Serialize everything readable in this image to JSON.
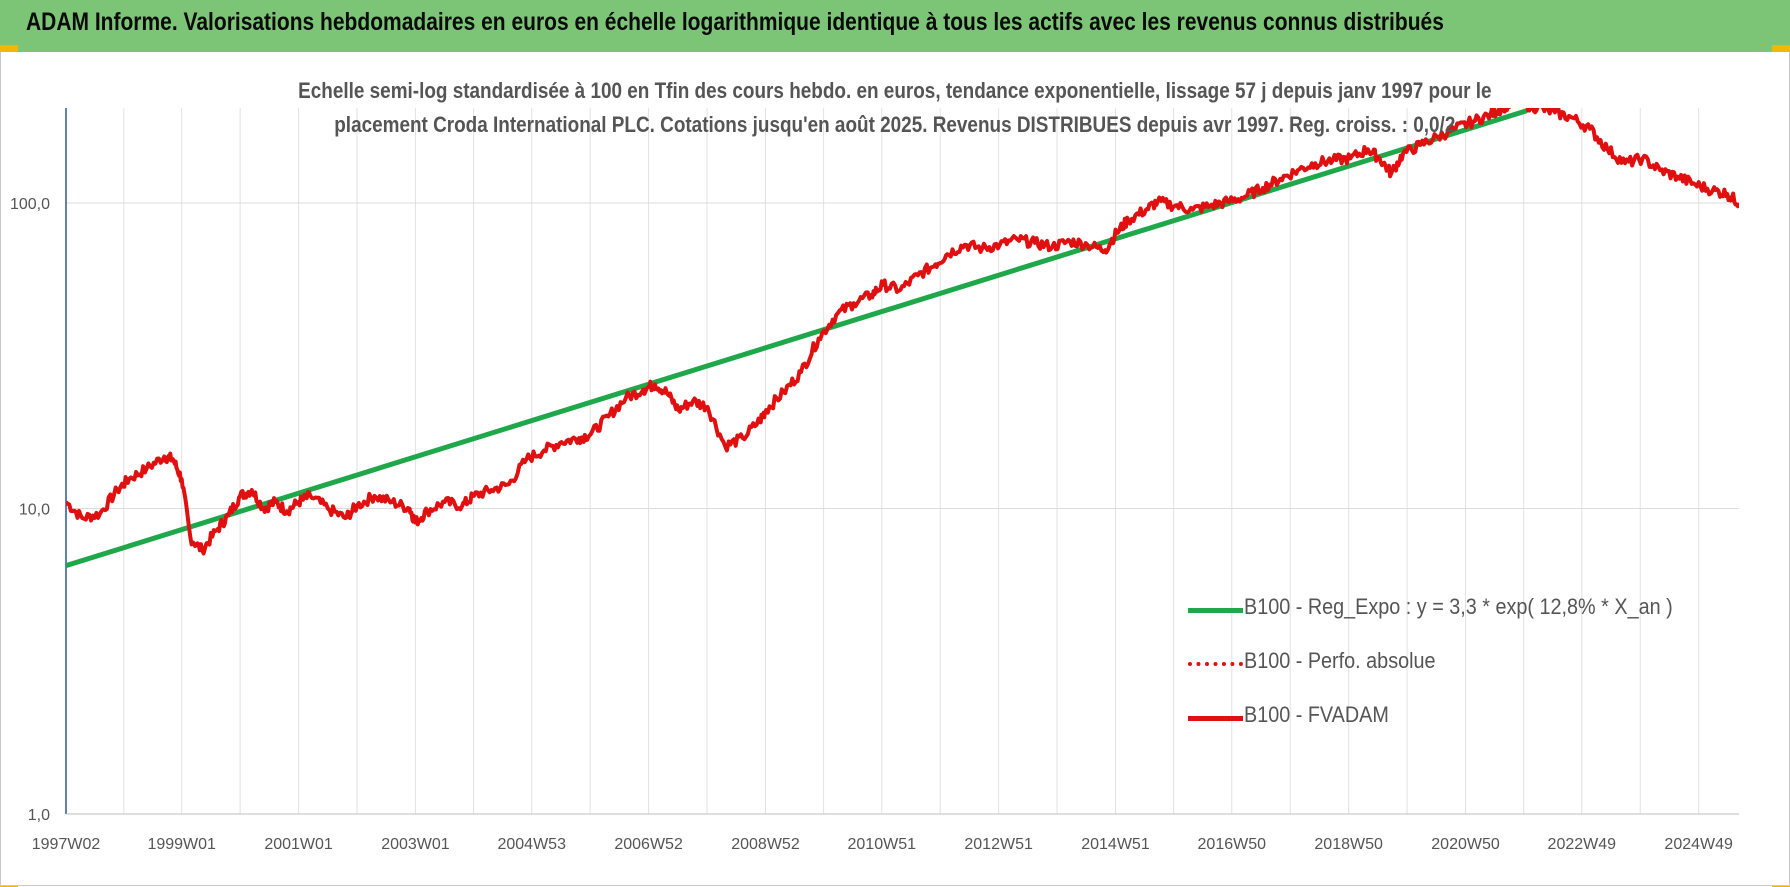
{
  "banner": {
    "title": "ADAM Informe. Valorisations hebdomadaires en euros en échelle logarithmique identique à tous les actifs avec les revenus connus distribués"
  },
  "chart_data": {
    "type": "line",
    "title_line1": "Echelle semi-log standardisée à 100 en Tfin des cours hebdo. en euros, tendance exponentielle, lissage 57 j depuis janv 1997 pour le",
    "title_line2": "placement Croda International PLC. Cotations jusqu'en août 2025. Revenus DISTRIBUES depuis avr 1997. Reg. croiss. : 0,0/2",
    "y_scale": "log",
    "ylim": [
      1,
      200
    ],
    "y_ticks": [
      "1,0",
      "10,0",
      "100,0"
    ],
    "y_tick_values": [
      1,
      10,
      100
    ],
    "xlim": [
      1997.02,
      2025.65
    ],
    "x_ticks": [
      "1997W02",
      "1999W01",
      "2001W01",
      "2003W01",
      "2004W53",
      "2006W52",
      "2008W52",
      "2010W51",
      "2012W51",
      "2014W51",
      "2016W50",
      "2018W50",
      "2020W50",
      "2022W49",
      "2024W49"
    ],
    "x_tick_values": [
      1997.02,
      1999.0,
      2001.0,
      2003.0,
      2004.99,
      2006.99,
      2008.99,
      2010.98,
      2012.98,
      2014.98,
      2016.97,
      2018.97,
      2020.97,
      2022.96,
      2024.96
    ],
    "grid": true,
    "legend_position": "bottom-right",
    "colors": {
      "trend": "#1ea84a",
      "perf": "#e01010",
      "fvadam": "#e01010"
    },
    "series": [
      {
        "name": "B100 - Reg_Expo : y = 3,3 * exp( 12,8% *  X_an )",
        "style": "solid",
        "x": [
          1997.02,
          2022.0
        ],
        "y": [
          6.5,
          200
        ]
      },
      {
        "name": "B100 - Perfo. absolue",
        "style": "dotted",
        "x": [],
        "y": []
      },
      {
        "name": "B100 - FVADAM",
        "style": "solid",
        "x": [
          1997.02,
          1997.3,
          1997.6,
          1997.9,
          1998.1,
          1998.4,
          1998.7,
          1998.85,
          1999.0,
          1999.15,
          1999.35,
          1999.6,
          1999.8,
          2000.0,
          2000.2,
          2000.4,
          2000.6,
          2000.8,
          2001.0,
          2001.2,
          2001.5,
          2001.8,
          2002.0,
          2002.3,
          2002.6,
          2002.9,
          2003.0,
          2003.2,
          2003.5,
          2003.8,
          2004.0,
          2004.3,
          2004.6,
          2004.9,
          2005.2,
          2005.5,
          2005.8,
          2006.0,
          2006.3,
          2006.6,
          2006.9,
          2007.1,
          2007.3,
          2007.5,
          2007.75,
          2008.0,
          2008.3,
          2008.6,
          2008.9,
          2009.0,
          2009.3,
          2009.6,
          2009.9,
          2010.2,
          2010.5,
          2010.8,
          2011.0,
          2011.3,
          2011.6,
          2011.9,
          2012.1,
          2012.4,
          2012.7,
          2013.0,
          2013.3,
          2013.6,
          2013.9,
          2014.2,
          2014.5,
          2014.8,
          2015.0,
          2015.2,
          2015.5,
          2015.7,
          2016.0,
          2016.3,
          2016.6,
          2016.9,
          2017.2,
          2017.5,
          2017.8,
          2018.1,
          2018.4,
          2018.7,
          2019.0,
          2019.3,
          2019.5,
          2019.7,
          2019.9,
          2020.2,
          2020.5,
          2020.8,
          2021.1,
          2021.4,
          2021.6,
          2021.8,
          2022.0,
          2022.2,
          2022.5,
          2022.8,
          2023.1,
          2023.4,
          2023.7,
          2024.0,
          2024.3,
          2024.6,
          2024.9,
          2025.2,
          2025.45,
          2025.65
        ],
        "y": [
          10.5,
          9.3,
          9.6,
          11.5,
          12.5,
          13.5,
          14.8,
          14.5,
          12.5,
          8.0,
          7.3,
          8.5,
          9.5,
          11.0,
          11.5,
          10.0,
          10.5,
          9.8,
          10.5,
          11.0,
          10.0,
          9.3,
          10.2,
          11.0,
          10.5,
          10.0,
          9.0,
          9.8,
          10.5,
          10.2,
          11.0,
          11.5,
          12.0,
          14.5,
          15.5,
          16.5,
          17.0,
          17.5,
          20.0,
          23.0,
          24.5,
          25.5,
          24.0,
          21.0,
          22.5,
          21.5,
          16.0,
          17.0,
          19.5,
          21.0,
          24.0,
          28.0,
          36.0,
          43.0,
          47.0,
          50.0,
          54.0,
          52.0,
          58.0,
          63.0,
          68.0,
          73.0,
          71.0,
          73.0,
          76.0,
          74.0,
          72.0,
          75.0,
          73.0,
          70.0,
          80.0,
          88.0,
          95.0,
          101.0,
          98.0,
          95.0,
          98.0,
          101.0,
          105.0,
          112.0,
          120.0,
          128.0,
          135.0,
          138.0,
          140.0,
          150.0,
          140.0,
          125.0,
          145.0,
          155.0,
          165.0,
          175.0,
          185.0,
          195.0,
          205.0,
          215.0,
          210.0,
          205.0,
          198.0,
          190.0,
          175.0,
          150.0,
          135.0,
          140.0,
          128.0,
          122.0,
          115.0,
          110.0,
          107.0,
          100.0
        ]
      }
    ]
  }
}
